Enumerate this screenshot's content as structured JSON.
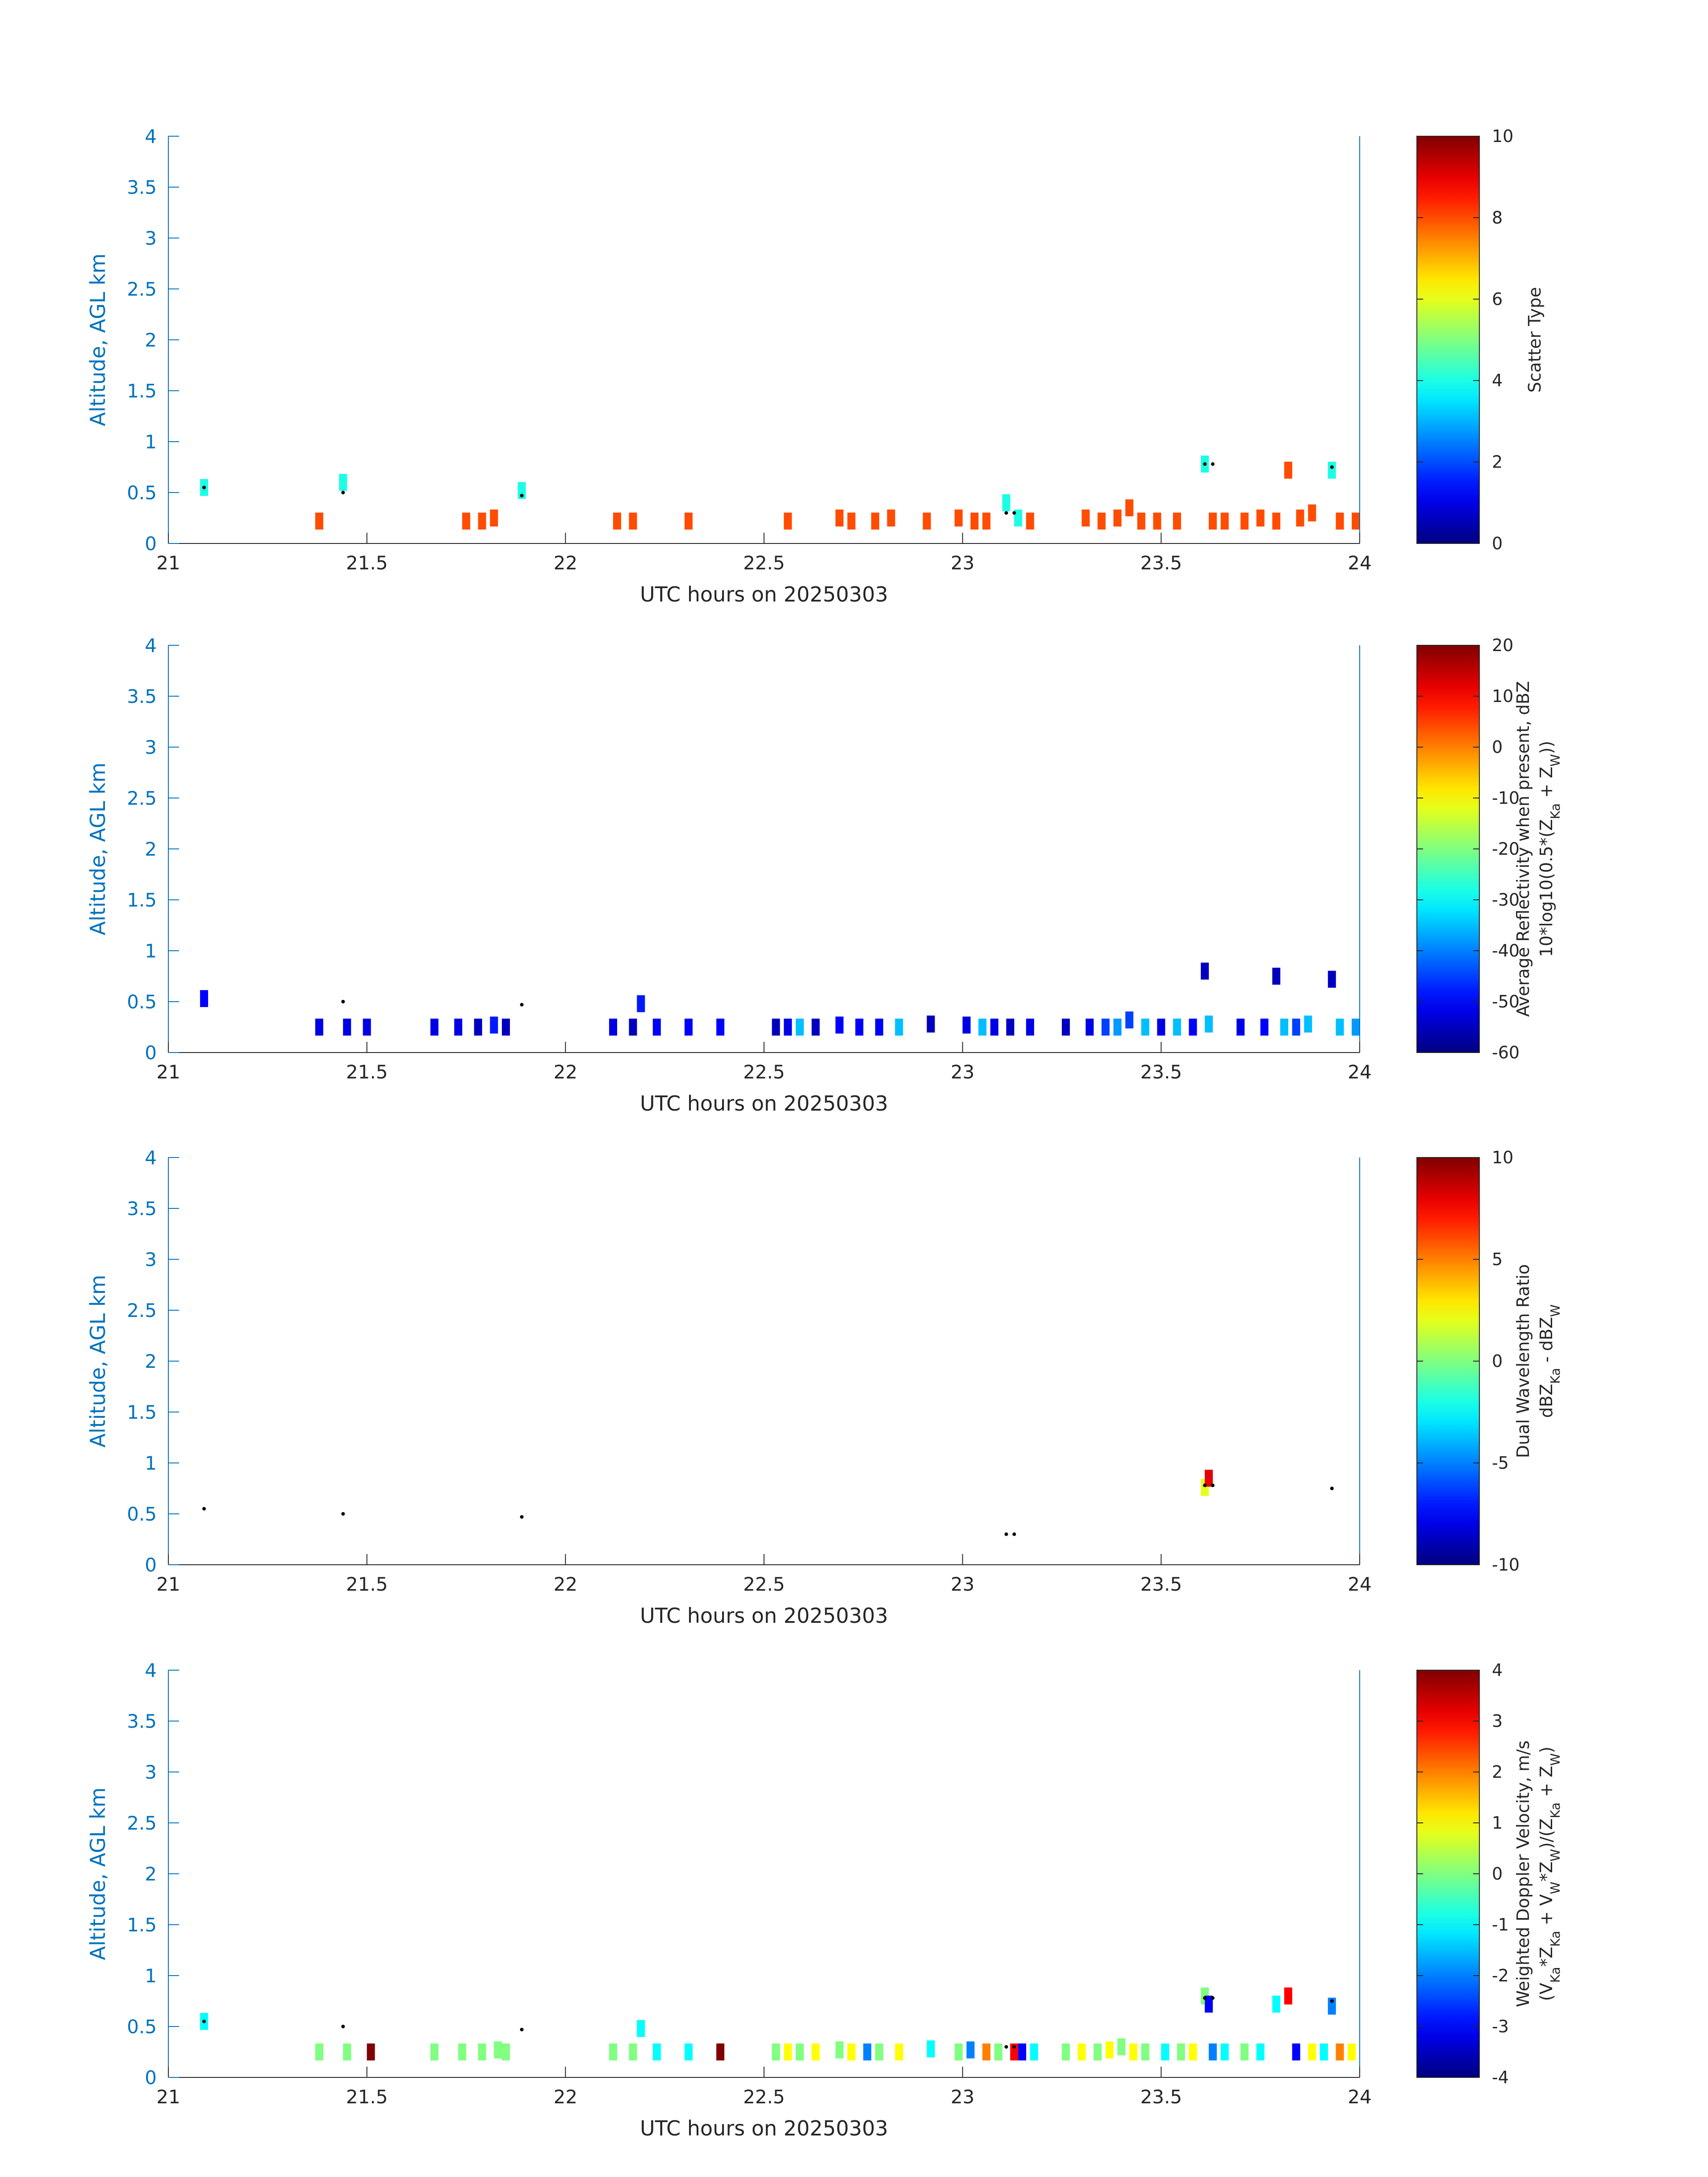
{
  "figure": {
    "axis_color": "#0072BD",
    "text_color": "#262626",
    "colormap": "jet",
    "marker_color": "#000000"
  },
  "chart_data": [
    {
      "type": "heatmap",
      "xlabel": "UTC hours on 20250303",
      "ylabel": "Altitude, AGL km",
      "xlim": [
        21,
        24
      ],
      "ylim": [
        0,
        4
      ],
      "xticks": [
        "21",
        "21.5",
        "22",
        "22.5",
        "23",
        "23.5",
        "24"
      ],
      "yticks": [
        "0",
        "0.5",
        "1",
        "1.5",
        "2",
        "2.5",
        "3",
        "3.5",
        "4"
      ],
      "colorbar": {
        "label": [
          "Scatter Type"
        ],
        "ticks": [
          "0",
          "2",
          "4",
          "6",
          "8",
          "10"
        ],
        "range": [
          0,
          10
        ]
      },
      "cells": [
        [
          21.09,
          0.55,
          4
        ],
        [
          21.44,
          0.6,
          4
        ],
        [
          21.38,
          0.22,
          8
        ],
        [
          21.75,
          0.22,
          8
        ],
        [
          21.79,
          0.22,
          8
        ],
        [
          21.82,
          0.25,
          8
        ],
        [
          21.89,
          0.52,
          4
        ],
        [
          22.13,
          0.22,
          8
        ],
        [
          22.17,
          0.22,
          8
        ],
        [
          22.31,
          0.22,
          8
        ],
        [
          22.56,
          0.22,
          8
        ],
        [
          22.69,
          0.25,
          8
        ],
        [
          22.72,
          0.22,
          8
        ],
        [
          22.78,
          0.22,
          8
        ],
        [
          22.82,
          0.25,
          8
        ],
        [
          22.91,
          0.22,
          8
        ],
        [
          22.99,
          0.25,
          8
        ],
        [
          23.03,
          0.22,
          8
        ],
        [
          23.06,
          0.22,
          8
        ],
        [
          23.11,
          0.4,
          4
        ],
        [
          23.14,
          0.25,
          4
        ],
        [
          23.17,
          0.22,
          8
        ],
        [
          23.31,
          0.25,
          8
        ],
        [
          23.35,
          0.22,
          8
        ],
        [
          23.39,
          0.25,
          8
        ],
        [
          23.42,
          0.35,
          8
        ],
        [
          23.45,
          0.22,
          8
        ],
        [
          23.49,
          0.22,
          8
        ],
        [
          23.54,
          0.22,
          8
        ],
        [
          23.61,
          0.78,
          4
        ],
        [
          23.63,
          0.22,
          8
        ],
        [
          23.66,
          0.22,
          8
        ],
        [
          23.71,
          0.22,
          8
        ],
        [
          23.75,
          0.25,
          8
        ],
        [
          23.79,
          0.22,
          8
        ],
        [
          23.82,
          0.72,
          8
        ],
        [
          23.85,
          0.25,
          8
        ],
        [
          23.88,
          0.3,
          8
        ],
        [
          23.93,
          0.72,
          4
        ],
        [
          23.95,
          0.22,
          8
        ],
        [
          23.99,
          0.22,
          8
        ]
      ],
      "markers": [
        [
          21.09,
          0.55
        ],
        [
          21.44,
          0.5
        ],
        [
          21.89,
          0.47
        ],
        [
          23.11,
          0.3
        ],
        [
          23.13,
          0.3
        ],
        [
          23.61,
          0.78
        ],
        [
          23.63,
          0.78
        ],
        [
          23.93,
          0.75
        ]
      ]
    },
    {
      "type": "heatmap",
      "xlabel": "UTC hours on 20250303",
      "ylabel": "Altitude, AGL km",
      "xlim": [
        21,
        24
      ],
      "ylim": [
        0,
        4
      ],
      "xticks": [
        "21",
        "21.5",
        "22",
        "22.5",
        "23",
        "23.5",
        "24"
      ],
      "yticks": [
        "0",
        "0.5",
        "1",
        "1.5",
        "2",
        "2.5",
        "3",
        "3.5",
        "4"
      ],
      "colorbar": {
        "label": [
          "Average Reflectivity when present, dBZ",
          "10*log10(0.5*(Z_Ka + Z_W))"
        ],
        "ticks": [
          "-60",
          "-50",
          "-40",
          "-30",
          "-20",
          "-10",
          "0",
          "10",
          "20"
        ],
        "range": [
          -60,
          20
        ]
      },
      "cells": [
        [
          21.09,
          0.53,
          -50
        ],
        [
          21.38,
          0.25,
          -52
        ],
        [
          21.45,
          0.25,
          -52
        ],
        [
          21.5,
          0.25,
          -52
        ],
        [
          21.67,
          0.25,
          -52
        ],
        [
          21.73,
          0.25,
          -52
        ],
        [
          21.78,
          0.25,
          -55
        ],
        [
          21.82,
          0.27,
          -48
        ],
        [
          21.85,
          0.25,
          -55
        ],
        [
          22.12,
          0.25,
          -52
        ],
        [
          22.17,
          0.25,
          -55
        ],
        [
          22.19,
          0.48,
          -48
        ],
        [
          22.23,
          0.25,
          -50
        ],
        [
          22.31,
          0.25,
          -50
        ],
        [
          22.39,
          0.25,
          -50
        ],
        [
          22.53,
          0.25,
          -55
        ],
        [
          22.56,
          0.25,
          -52
        ],
        [
          22.59,
          0.25,
          -35
        ],
        [
          22.63,
          0.25,
          -55
        ],
        [
          22.69,
          0.27,
          -50
        ],
        [
          22.74,
          0.25,
          -50
        ],
        [
          22.79,
          0.25,
          -50
        ],
        [
          22.84,
          0.25,
          -35
        ],
        [
          22.92,
          0.28,
          -55
        ],
        [
          23.01,
          0.27,
          -52
        ],
        [
          23.05,
          0.25,
          -35
        ],
        [
          23.08,
          0.25,
          -52
        ],
        [
          23.12,
          0.25,
          -55
        ],
        [
          23.17,
          0.25,
          -52
        ],
        [
          23.26,
          0.25,
          -55
        ],
        [
          23.32,
          0.25,
          -52
        ],
        [
          23.36,
          0.25,
          -45
        ],
        [
          23.39,
          0.25,
          -38
        ],
        [
          23.42,
          0.32,
          -45
        ],
        [
          23.46,
          0.25,
          -35
        ],
        [
          23.5,
          0.25,
          -52
        ],
        [
          23.54,
          0.25,
          -35
        ],
        [
          23.58,
          0.25,
          -50
        ],
        [
          23.61,
          0.8,
          -55
        ],
        [
          23.62,
          0.28,
          -35
        ],
        [
          23.7,
          0.25,
          -52
        ],
        [
          23.76,
          0.25,
          -50
        ],
        [
          23.79,
          0.75,
          -55
        ],
        [
          23.81,
          0.25,
          -35
        ],
        [
          23.84,
          0.25,
          -45
        ],
        [
          23.87,
          0.28,
          -35
        ],
        [
          23.93,
          0.72,
          -55
        ],
        [
          23.95,
          0.25,
          -35
        ],
        [
          23.99,
          0.25,
          -38
        ]
      ],
      "markers": [
        [
          21.44,
          0.5
        ],
        [
          21.89,
          0.47
        ]
      ]
    },
    {
      "type": "heatmap",
      "xlabel": "UTC hours on 20250303",
      "ylabel": "Altitude, AGL km",
      "xlim": [
        21,
        24
      ],
      "ylim": [
        0,
        4
      ],
      "xticks": [
        "21",
        "21.5",
        "22",
        "22.5",
        "23",
        "23.5",
        "24"
      ],
      "yticks": [
        "0",
        "0.5",
        "1",
        "1.5",
        "2",
        "2.5",
        "3",
        "3.5",
        "4"
      ],
      "colorbar": {
        "label": [
          "Dual Wavelength Ratio",
          "dBZ_Ka - dBZ_W"
        ],
        "ticks": [
          "-10",
          "-5",
          "0",
          "5",
          "10"
        ],
        "range": [
          -10,
          10
        ]
      },
      "cells": [
        [
          23.61,
          0.76,
          2
        ],
        [
          23.62,
          0.85,
          8
        ]
      ],
      "markers": [
        [
          21.09,
          0.55
        ],
        [
          21.44,
          0.5
        ],
        [
          21.89,
          0.47
        ],
        [
          23.11,
          0.3
        ],
        [
          23.13,
          0.3
        ],
        [
          23.61,
          0.78
        ],
        [
          23.63,
          0.78
        ],
        [
          23.93,
          0.75
        ]
      ]
    },
    {
      "type": "heatmap",
      "xlabel": "UTC hours on 20250303",
      "ylabel": "Altitude, AGL km",
      "xlim": [
        21,
        24
      ],
      "ylim": [
        0,
        4
      ],
      "xticks": [
        "21",
        "21.5",
        "22",
        "22.5",
        "23",
        "23.5",
        "24"
      ],
      "yticks": [
        "0",
        "0.5",
        "1",
        "1.5",
        "2",
        "2.5",
        "3",
        "3.5",
        "4"
      ],
      "colorbar": {
        "label": [
          "Weighted Doppler Velocity, m/s",
          "(V_Ka*Z_Ka + V_W*Z_W)/(Z_Ka + Z_W)"
        ],
        "ticks": [
          "-4",
          "-3",
          "-2",
          "-1",
          "0",
          "1",
          "2",
          "3",
          "4"
        ],
        "range": [
          -4,
          4
        ]
      },
      "cells": [
        [
          21.09,
          0.55,
          -1
        ],
        [
          21.38,
          0.25,
          0
        ],
        [
          21.45,
          0.25,
          0
        ],
        [
          21.51,
          0.25,
          4
        ],
        [
          21.67,
          0.25,
          0
        ],
        [
          21.74,
          0.25,
          0
        ],
        [
          21.79,
          0.25,
          0
        ],
        [
          21.83,
          0.27,
          0
        ],
        [
          21.85,
          0.25,
          0
        ],
        [
          22.12,
          0.25,
          0
        ],
        [
          22.17,
          0.25,
          0
        ],
        [
          22.19,
          0.48,
          -1
        ],
        [
          22.23,
          0.25,
          -1
        ],
        [
          22.31,
          0.25,
          -1
        ],
        [
          22.39,
          0.25,
          4
        ],
        [
          22.53,
          0.25,
          0
        ],
        [
          22.56,
          0.25,
          1
        ],
        [
          22.59,
          0.25,
          0
        ],
        [
          22.63,
          0.25,
          1
        ],
        [
          22.69,
          0.27,
          0
        ],
        [
          22.72,
          0.25,
          1
        ],
        [
          22.76,
          0.25,
          -2
        ],
        [
          22.79,
          0.25,
          0
        ],
        [
          22.84,
          0.25,
          1
        ],
        [
          22.92,
          0.28,
          -1
        ],
        [
          22.99,
          0.25,
          0
        ],
        [
          23.02,
          0.27,
          -2
        ],
        [
          23.06,
          0.25,
          2
        ],
        [
          23.09,
          0.25,
          0
        ],
        [
          23.13,
          0.25,
          3
        ],
        [
          23.15,
          0.25,
          -3
        ],
        [
          23.18,
          0.25,
          -1
        ],
        [
          23.26,
          0.25,
          0
        ],
        [
          23.3,
          0.25,
          1
        ],
        [
          23.34,
          0.25,
          0
        ],
        [
          23.37,
          0.27,
          1
        ],
        [
          23.4,
          0.3,
          0
        ],
        [
          23.43,
          0.25,
          1
        ],
        [
          23.46,
          0.25,
          0
        ],
        [
          23.51,
          0.25,
          -1
        ],
        [
          23.55,
          0.25,
          0
        ],
        [
          23.58,
          0.25,
          1
        ],
        [
          23.61,
          0.8,
          0
        ],
        [
          23.62,
          0.72,
          -3
        ],
        [
          23.63,
          0.25,
          -2
        ],
        [
          23.66,
          0.25,
          -1
        ],
        [
          23.71,
          0.25,
          0
        ],
        [
          23.75,
          0.25,
          -1
        ],
        [
          23.79,
          0.72,
          -1
        ],
        [
          23.82,
          0.8,
          3
        ],
        [
          23.84,
          0.25,
          -3
        ],
        [
          23.88,
          0.25,
          1
        ],
        [
          23.91,
          0.25,
          -1
        ],
        [
          23.93,
          0.7,
          -2
        ],
        [
          23.95,
          0.25,
          2
        ],
        [
          23.98,
          0.25,
          1
        ]
      ],
      "markers": [
        [
          21.09,
          0.55
        ],
        [
          21.44,
          0.5
        ],
        [
          21.89,
          0.47
        ],
        [
          23.11,
          0.3
        ],
        [
          23.13,
          0.3
        ],
        [
          23.61,
          0.78
        ],
        [
          23.63,
          0.78
        ],
        [
          23.93,
          0.75
        ]
      ]
    }
  ]
}
